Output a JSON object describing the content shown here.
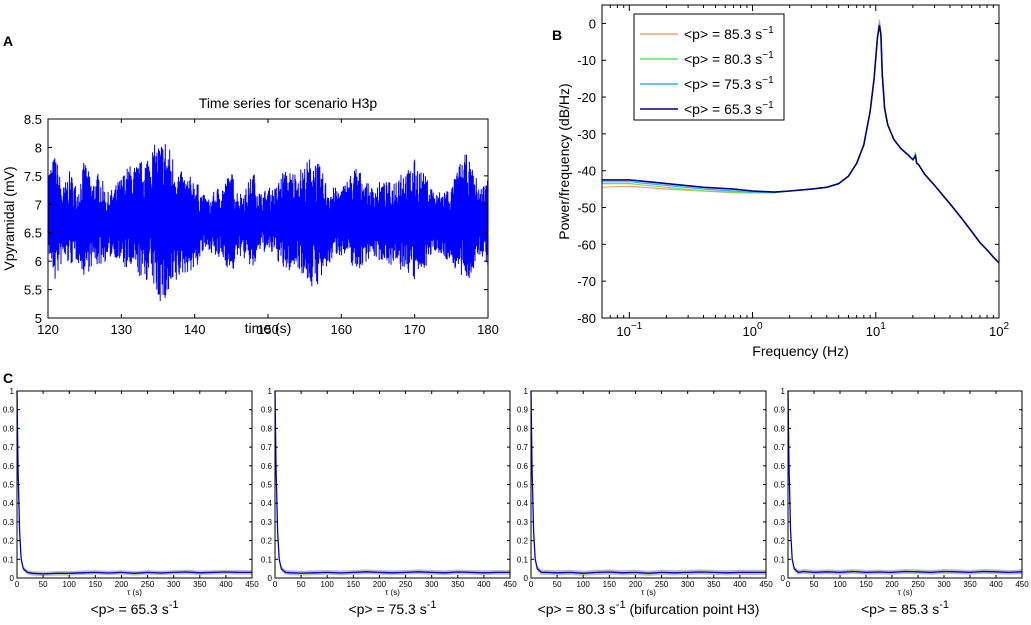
{
  "panel_labels": {
    "a": "A",
    "b": "B",
    "c": "C"
  },
  "chart_data": [
    {
      "type": "line",
      "id": "A",
      "title": "Time series for scenario H3p",
      "xlabel": "time (s)",
      "ylabel": "Vpyramidal (mV)",
      "xlim": [
        120,
        180
      ],
      "ylim": [
        5,
        8.5
      ],
      "xticks": [
        120,
        130,
        140,
        150,
        160,
        170,
        180
      ],
      "yticks": [
        5,
        5.5,
        6,
        6.5,
        7,
        7.5,
        8,
        8.5
      ],
      "series_color": "#0000ff",
      "envelope": {
        "x": [
          120,
          121,
          122,
          123,
          124,
          125,
          126,
          127,
          128,
          129,
          130,
          131,
          132,
          133,
          134,
          135,
          136,
          137,
          138,
          139,
          140,
          141,
          142,
          143,
          144,
          145,
          146,
          147,
          148,
          149,
          150,
          151,
          152,
          153,
          154,
          155,
          156,
          157,
          158,
          159,
          160,
          161,
          162,
          163,
          164,
          165,
          166,
          167,
          168,
          169,
          170,
          171,
          172,
          173,
          174,
          175,
          176,
          177,
          178,
          179,
          180
        ],
        "upper": [
          7.6,
          7.9,
          7.3,
          7.6,
          7.3,
          7.8,
          7.4,
          7.6,
          7.2,
          7.3,
          7.5,
          7.7,
          7.7,
          7.8,
          8.0,
          8.1,
          8.2,
          7.9,
          7.6,
          7.5,
          7.5,
          7.2,
          7.1,
          7.3,
          7.4,
          7.6,
          7.2,
          7.3,
          7.6,
          7.2,
          7.3,
          7.3,
          7.6,
          7.6,
          7.6,
          7.7,
          7.9,
          7.7,
          7.4,
          7.3,
          7.3,
          7.5,
          7.7,
          7.5,
          7.3,
          7.4,
          7.4,
          7.4,
          7.7,
          7.6,
          7.8,
          7.6,
          7.4,
          7.2,
          7.3,
          7.3,
          7.7,
          7.9,
          7.6,
          7.3,
          7.5
        ],
        "lower": [
          6.1,
          5.6,
          6.0,
          5.9,
          6.0,
          5.7,
          5.9,
          5.9,
          6.0,
          6.1,
          5.9,
          5.8,
          5.8,
          5.6,
          5.7,
          5.3,
          5.2,
          5.4,
          5.7,
          5.8,
          5.8,
          6.1,
          6.2,
          6.0,
          6.0,
          5.7,
          6.1,
          6.0,
          5.8,
          6.2,
          6.1,
          6.1,
          5.8,
          5.8,
          5.9,
          5.7,
          5.5,
          5.6,
          5.8,
          6.1,
          6.1,
          6.0,
          5.8,
          5.9,
          6.1,
          6.0,
          6.0,
          5.9,
          5.8,
          5.8,
          5.6,
          5.8,
          6.0,
          6.2,
          6.0,
          6.0,
          5.7,
          5.6,
          5.8,
          6.1,
          5.9
        ]
      }
    },
    {
      "type": "line",
      "id": "B",
      "xlabel": "Frequency (Hz)",
      "ylabel": "Power/frequency (dB/Hz)",
      "xscale": "log",
      "xlim": [
        0.06,
        100
      ],
      "ylim": [
        -80,
        5
      ],
      "yticks": [
        0,
        -10,
        -20,
        -30,
        -40,
        -50,
        -60,
        -70,
        -80
      ],
      "xticks": [
        {
          "value": 0.1,
          "base": "10",
          "exp": "−1"
        },
        {
          "value": 1,
          "base": "10",
          "exp": "0"
        },
        {
          "value": 10,
          "base": "10",
          "exp": "1"
        },
        {
          "value": 100,
          "base": "10",
          "exp": "2"
        }
      ],
      "legend_position": "top-left",
      "x": [
        0.06,
        0.1,
        0.2,
        0.4,
        0.7,
        1.0,
        1.5,
        2.0,
        3.0,
        4.0,
        5.0,
        6.0,
        7.0,
        8.0,
        9.0,
        9.7,
        10.3,
        10.7,
        11.0,
        11.3,
        11.8,
        12.5,
        14,
        16,
        18,
        20,
        21,
        21.5,
        22,
        22.5,
        25,
        30,
        40,
        50,
        60,
        70,
        80,
        90,
        100
      ],
      "series": [
        {
          "name": "<p> = 85.3 s⁻¹",
          "legend_main": "<p> = 85.3 s",
          "legend_sup": "−1",
          "color": "#f4a460",
          "values": [
            -44.5,
            -44.2,
            -45,
            -45.5,
            -46,
            -46,
            -46,
            -45.5,
            -45,
            -44.5,
            -43.5,
            -41.5,
            -38,
            -33,
            -24,
            -15,
            -4,
            1,
            -3,
            -14,
            -23,
            -27.5,
            -31.5,
            -34,
            -35.5,
            -37,
            -35.5,
            -38,
            -38.2,
            -38.6,
            -41,
            -44,
            -49,
            -53,
            -56.5,
            -59.5,
            -61.5,
            -63.5,
            -65
          ]
        },
        {
          "name": "<p> = 80.3 s⁻¹",
          "legend_main": "<p> = 80.3 s",
          "legend_sup": "−1",
          "color": "#66e066",
          "values": [
            -43.5,
            -43.5,
            -44.5,
            -45.5,
            -45.8,
            -46,
            -46,
            -45.5,
            -45,
            -44.5,
            -43.5,
            -41.5,
            -38,
            -33,
            -24,
            -15,
            -4,
            0.5,
            -3,
            -14,
            -23,
            -27.5,
            -31.5,
            -34,
            -35.5,
            -37,
            -35,
            -38,
            -38.2,
            -38.6,
            -41,
            -44,
            -49,
            -53,
            -56.5,
            -59.5,
            -61.5,
            -63.5,
            -65
          ]
        },
        {
          "name": "<p> = 75.3 s⁻¹",
          "legend_main": "<p> = 75.3 s",
          "legend_sup": "−1",
          "color": "#33aaff",
          "values": [
            -43,
            -43,
            -44,
            -45,
            -45.5,
            -45.8,
            -45.8,
            -45.5,
            -45,
            -44.5,
            -43.5,
            -41.5,
            -38,
            -33,
            -24,
            -15,
            -4,
            0,
            -3,
            -14,
            -23,
            -27.5,
            -31.5,
            -34,
            -35.5,
            -37,
            -35.8,
            -38,
            -38.2,
            -38.6,
            -41,
            -44,
            -49,
            -53,
            -56.5,
            -59.5,
            -61.5,
            -63.5,
            -65
          ]
        },
        {
          "name": "<p> = 65.3 s⁻¹",
          "legend_main": "<p> = 65.3 s",
          "legend_sup": "−1",
          "color": "#000080",
          "values": [
            -42.5,
            -42.5,
            -43.5,
            -44.5,
            -45,
            -45.5,
            -45.8,
            -45.5,
            -45,
            -44.5,
            -43.5,
            -41.5,
            -38,
            -33,
            -24,
            -15,
            -4,
            -0.5,
            -3,
            -14,
            -23,
            -27.5,
            -31.5,
            -34,
            -35.5,
            -37,
            -36,
            -38,
            -38.2,
            -38.6,
            -41,
            -44,
            -49,
            -53,
            -56.5,
            -59.5,
            -61.5,
            -63.5,
            -65
          ]
        }
      ]
    },
    {
      "type": "line",
      "id": "C1",
      "xlabel": "τ (s)",
      "xlim": [
        0,
        450
      ],
      "ylim": [
        0,
        1
      ],
      "caption_main": "<p>   = 65.3 s",
      "caption_sup": "-1",
      "caption_tail": "",
      "x": [
        0,
        2,
        5,
        8,
        12,
        20,
        30,
        50,
        75,
        100,
        125,
        150,
        175,
        200,
        225,
        250,
        275,
        300,
        325,
        350,
        375,
        400,
        425,
        450
      ],
      "mean": [
        1,
        0.6,
        0.25,
        0.1,
        0.05,
        0.03,
        0.025,
        0.022,
        0.025,
        0.025,
        0.028,
        0.03,
        0.027,
        0.03,
        0.025,
        0.03,
        0.027,
        0.03,
        0.032,
        0.028,
        0.03,
        0.032,
        0.03,
        0.03
      ],
      "band": 0.012,
      "mean_color": "#0000cc",
      "band_color": "#bdbdbd"
    },
    {
      "type": "line",
      "id": "C2",
      "xlabel": "τ (s)",
      "xlim": [
        0,
        450
      ],
      "ylim": [
        0,
        1
      ],
      "caption_main": "<p>   = 75.3 s",
      "caption_sup": "-1",
      "caption_tail": "",
      "x": [
        0,
        2,
        5,
        8,
        12,
        20,
        30,
        50,
        75,
        100,
        125,
        150,
        175,
        200,
        225,
        250,
        275,
        300,
        325,
        350,
        375,
        400,
        425,
        450
      ],
      "mean": [
        1,
        0.6,
        0.25,
        0.1,
        0.05,
        0.03,
        0.028,
        0.026,
        0.028,
        0.03,
        0.027,
        0.03,
        0.033,
        0.03,
        0.028,
        0.03,
        0.033,
        0.03,
        0.028,
        0.032,
        0.03,
        0.028,
        0.03,
        0.03
      ],
      "band": 0.013,
      "mean_color": "#0000cc",
      "band_color": "#bdbdbd"
    },
    {
      "type": "line",
      "id": "C3",
      "xlabel": "τ (s)",
      "xlim": [
        0,
        450
      ],
      "ylim": [
        0,
        1
      ],
      "caption_main": "<p>   = 80.3 s",
      "caption_sup": "-1",
      "caption_tail": " (bifurcation point H3)",
      "x": [
        0,
        2,
        5,
        8,
        12,
        20,
        30,
        50,
        75,
        100,
        125,
        150,
        175,
        200,
        225,
        250,
        275,
        300,
        325,
        350,
        375,
        400,
        425,
        450
      ],
      "mean": [
        1,
        0.6,
        0.25,
        0.1,
        0.05,
        0.03,
        0.03,
        0.028,
        0.03,
        0.025,
        0.03,
        0.032,
        0.028,
        0.03,
        0.025,
        0.03,
        0.028,
        0.03,
        0.032,
        0.03,
        0.028,
        0.03,
        0.03,
        0.03
      ],
      "band": 0.014,
      "mean_color": "#0000cc",
      "band_color": "#bdbdbd"
    },
    {
      "type": "line",
      "id": "C4",
      "xlabel": "τ (s)",
      "xlim": [
        0,
        450
      ],
      "ylim": [
        0,
        1
      ],
      "caption_main": "<p>   = 85.3 s",
      "caption_sup": "-1",
      "caption_tail": "",
      "x": [
        0,
        2,
        5,
        8,
        12,
        20,
        30,
        50,
        75,
        100,
        125,
        150,
        175,
        200,
        225,
        250,
        275,
        300,
        325,
        350,
        375,
        400,
        425,
        450
      ],
      "mean": [
        1,
        0.6,
        0.25,
        0.1,
        0.05,
        0.03,
        0.035,
        0.03,
        0.033,
        0.03,
        0.035,
        0.03,
        0.032,
        0.03,
        0.035,
        0.033,
        0.03,
        0.035,
        0.033,
        0.03,
        0.035,
        0.033,
        0.03,
        0.033
      ],
      "band": 0.013,
      "mean_color": "#0000cc",
      "band_color": "#bdbdbd"
    }
  ],
  "c_yticks": [
    0,
    0.1,
    0.2,
    0.3,
    0.4,
    0.5,
    0.6,
    0.7,
    0.8,
    0.9,
    1
  ],
  "c_xticks": [
    0,
    50,
    100,
    150,
    200,
    250,
    300,
    350,
    400,
    450
  ]
}
